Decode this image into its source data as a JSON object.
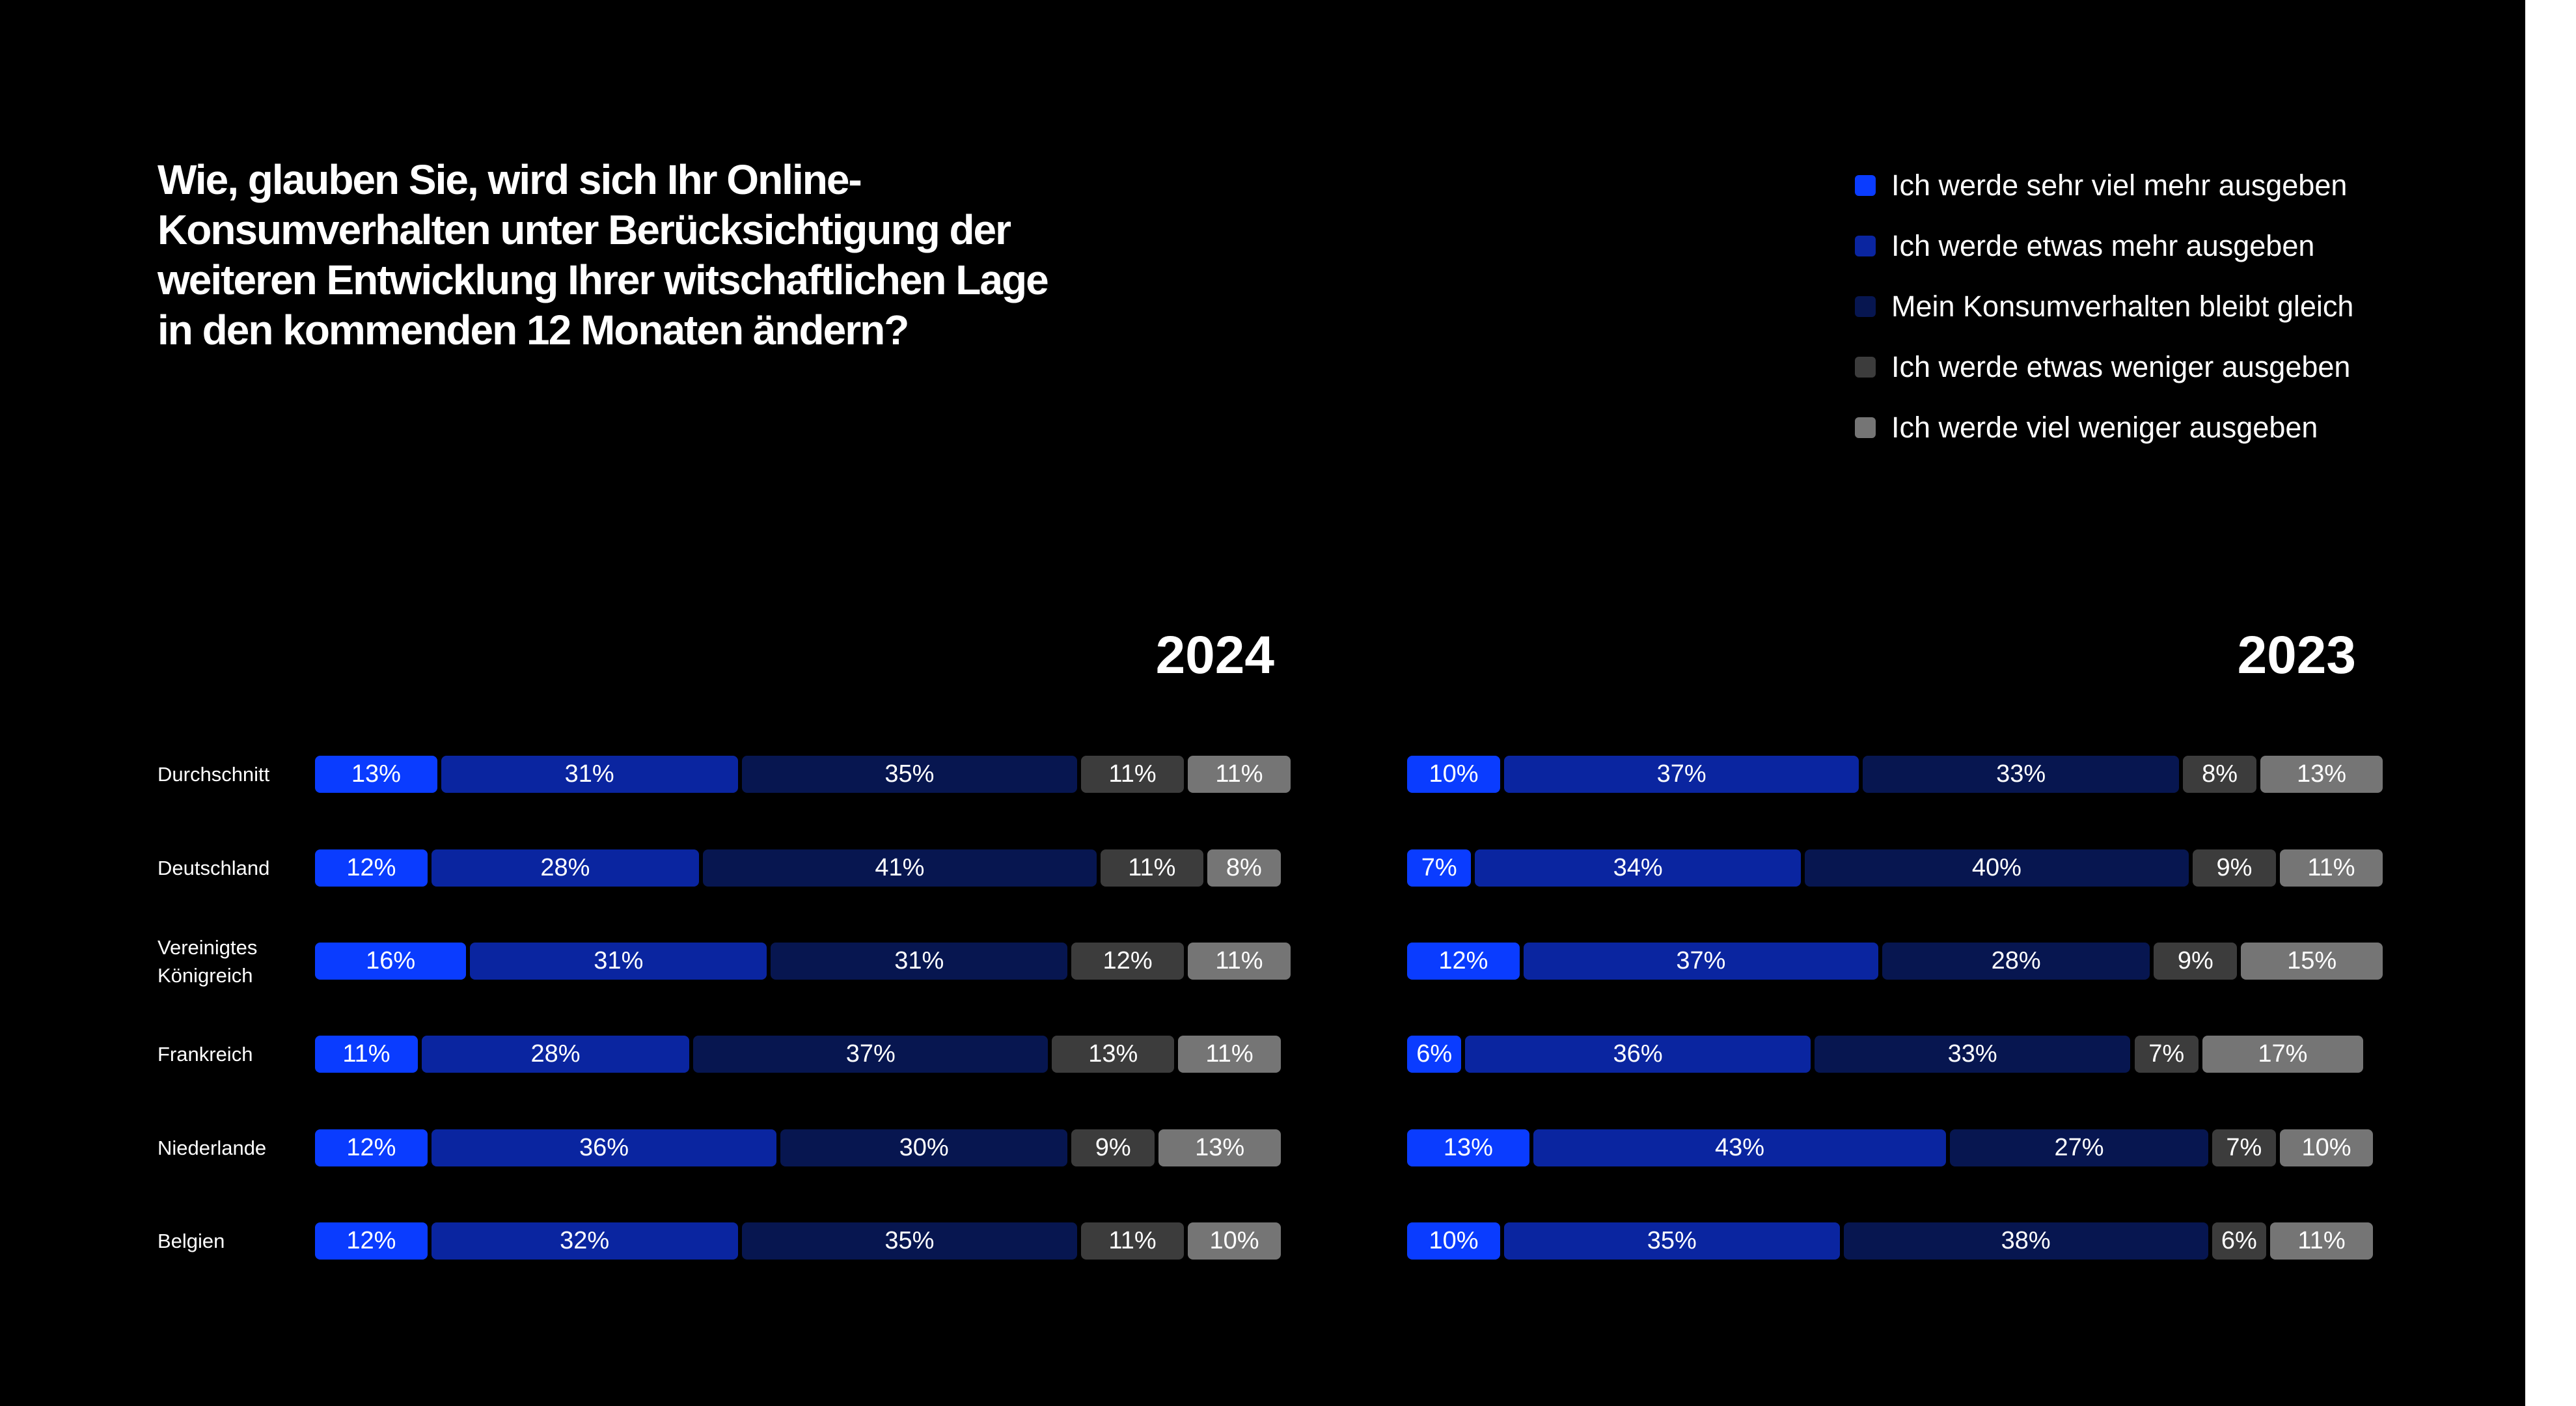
{
  "question": "Wie, glauben Sie, wird sich Ihr Online-Konsumverhalten unter Berücksichtigung der weiteren Entwicklung Ihrer witschaftlichen Lage in den kommenden 12 Monaten ändern?",
  "legend": [
    {
      "label": "Ich werde sehr viel mehr ausgeben",
      "color": "#0a3cff"
    },
    {
      "label": "Ich werde etwas mehr ausgeben",
      "color": "#0a25a0"
    },
    {
      "label": "Mein Konsumverhalten bleibt gleich",
      "color": "#071650"
    },
    {
      "label": "Ich werde etwas weniger ausgeben",
      "color": "#3c3c3c"
    },
    {
      "label": "Ich werde viel weniger ausgeben",
      "color": "#757575"
    }
  ],
  "chart_data": [
    {
      "type": "bar",
      "stacked": true,
      "orientation": "horizontal",
      "title": "2024",
      "categories": [
        "Durchschnitt",
        "Deutschland",
        "Vereinigtes Königreich",
        "Frankreich",
        "Niederlande",
        "Belgien"
      ],
      "series": [
        {
          "name": "Ich werde sehr viel mehr ausgeben",
          "values": [
            13,
            12,
            16,
            11,
            12,
            12
          ]
        },
        {
          "name": "Ich werde etwas mehr ausgeben",
          "values": [
            31,
            28,
            31,
            28,
            36,
            32
          ]
        },
        {
          "name": "Mein Konsumverhalten bleibt gleich",
          "values": [
            35,
            41,
            31,
            37,
            30,
            35
          ]
        },
        {
          "name": "Ich werde etwas weniger ausgeben",
          "values": [
            11,
            11,
            12,
            13,
            9,
            11
          ]
        },
        {
          "name": "Ich werde viel weniger ausgeben",
          "values": [
            11,
            8,
            11,
            11,
            13,
            10
          ]
        }
      ],
      "value_suffix": "%"
    },
    {
      "type": "bar",
      "stacked": true,
      "orientation": "horizontal",
      "title": "2023",
      "categories": [
        "Durchschnitt",
        "Deutschland",
        "Vereinigtes Königreich",
        "Frankreich",
        "Niederlande",
        "Belgien"
      ],
      "series": [
        {
          "name": "Ich werde sehr viel mehr ausgeben",
          "values": [
            10,
            7,
            12,
            6,
            13,
            10
          ]
        },
        {
          "name": "Ich werde etwas mehr ausgeben",
          "values": [
            37,
            34,
            37,
            36,
            43,
            35
          ]
        },
        {
          "name": "Mein Konsumverhalten bleibt gleich",
          "values": [
            33,
            40,
            28,
            33,
            27,
            38
          ]
        },
        {
          "name": "Ich werde etwas weniger ausgeben",
          "values": [
            8,
            9,
            9,
            7,
            7,
            6
          ]
        },
        {
          "name": "Ich werde viel weniger ausgeben",
          "values": [
            13,
            11,
            15,
            17,
            10,
            11
          ]
        }
      ],
      "value_suffix": "%"
    }
  ]
}
